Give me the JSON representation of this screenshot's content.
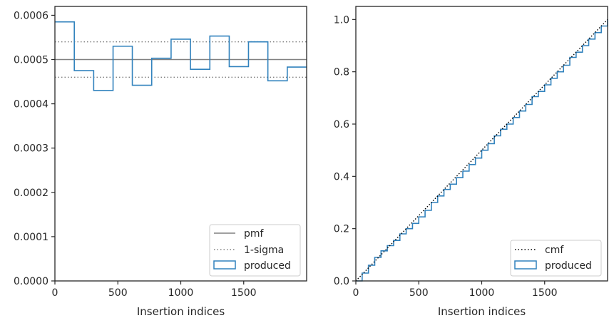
{
  "chart_data": [
    {
      "type": "line",
      "xlabel": "Insertion indices",
      "ylabel": "",
      "xlim": [
        0,
        2000
      ],
      "ylim": [
        0,
        0.00062
      ],
      "xticks": [
        0,
        500,
        1000,
        1500
      ],
      "xtick_labels": [
        "0",
        "500",
        "1000",
        "1500"
      ],
      "yticks": [
        0,
        0.0001,
        0.0002,
        0.0003,
        0.0004,
        0.0005,
        0.0006
      ],
      "ytick_labels": [
        "0.0000",
        "0.0001",
        "0.0002",
        "0.0003",
        "0.0004",
        "0.0005",
        "0.0006"
      ],
      "legend_position": "lower-right",
      "grid": false,
      "pmf": 0.0005,
      "sigma_upper": 0.00054,
      "sigma_lower": 0.00046,
      "bin_edges": [
        0,
        154,
        308,
        462,
        615,
        769,
        923,
        1077,
        1231,
        1385,
        1538,
        1692,
        1846,
        2000
      ],
      "produced": [
        0.000585,
        0.000475,
        0.00043,
        0.00053,
        0.000442,
        0.000503,
        0.000546,
        0.000478,
        0.000553,
        0.000484,
        0.00054,
        0.000452,
        0.000483
      ],
      "series": [
        {
          "name": "pmf",
          "color": "#808080",
          "style": "solid"
        },
        {
          "name": "1-sigma",
          "color": "#808080",
          "style": "dotted"
        },
        {
          "name": "produced",
          "color": "#3182bd",
          "style": "step"
        }
      ]
    },
    {
      "type": "line",
      "xlabel": "Insertion indices",
      "ylabel": "",
      "xlim": [
        0,
        2000
      ],
      "ylim": [
        0,
        1.05
      ],
      "xticks": [
        0,
        500,
        1000,
        1500
      ],
      "xtick_labels": [
        "0",
        "500",
        "1000",
        "1500"
      ],
      "yticks": [
        0,
        0.2,
        0.4,
        0.6,
        0.8,
        1.0
      ],
      "ytick_labels": [
        "0.0",
        "0.2",
        "0.4",
        "0.6",
        "0.8",
        "1.0"
      ],
      "legend_position": "lower-right",
      "grid": false,
      "cmf_x": [
        0,
        2000
      ],
      "cmf_y": [
        0,
        1
      ],
      "produced_x": [
        0,
        50,
        100,
        150,
        200,
        250,
        300,
        350,
        400,
        450,
        500,
        550,
        600,
        650,
        700,
        750,
        800,
        850,
        900,
        950,
        1000,
        1050,
        1100,
        1150,
        1200,
        1250,
        1300,
        1350,
        1400,
        1450,
        1500,
        1550,
        1600,
        1650,
        1700,
        1750,
        1800,
        1850,
        1900,
        1950,
        2000
      ],
      "produced_y": [
        0,
        0.03,
        0.06,
        0.09,
        0.115,
        0.135,
        0.155,
        0.18,
        0.2,
        0.22,
        0.245,
        0.27,
        0.3,
        0.325,
        0.35,
        0.37,
        0.395,
        0.42,
        0.445,
        0.47,
        0.5,
        0.525,
        0.555,
        0.58,
        0.6,
        0.625,
        0.65,
        0.675,
        0.705,
        0.725,
        0.75,
        0.775,
        0.8,
        0.825,
        0.855,
        0.875,
        0.9,
        0.925,
        0.95,
        0.975,
        1.0
      ],
      "series": [
        {
          "name": "cmf",
          "color": "#000000",
          "style": "dotted"
        },
        {
          "name": "produced",
          "color": "#3182bd",
          "style": "step"
        }
      ]
    }
  ]
}
